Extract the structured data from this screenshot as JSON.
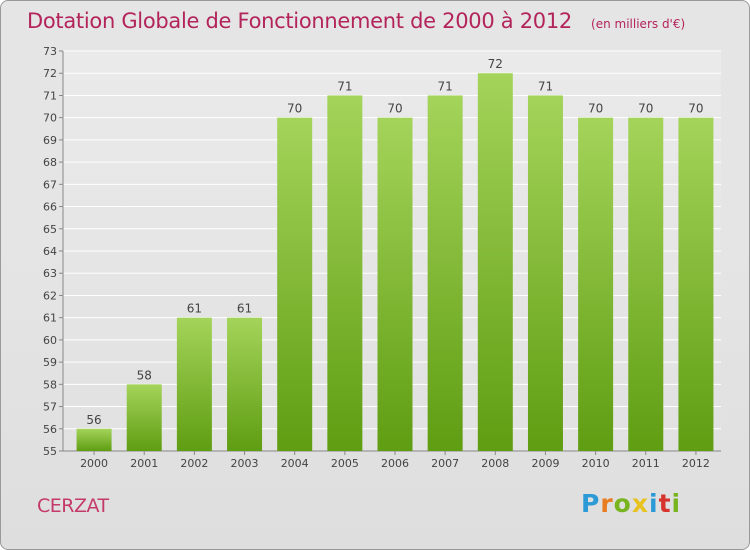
{
  "header": {
    "title": "Dotation Globale de Fonctionnement de 2000 à 2012",
    "unit": "(en milliers d'€)"
  },
  "footer": {
    "commune": "CERZAT",
    "logo": {
      "letters": [
        "P",
        "r",
        "o",
        "x",
        "i",
        "t",
        "i"
      ],
      "colors": [
        "#2b9ad6",
        "#e87c1e",
        "#78b41e",
        "#e8c21e",
        "#2b9ad6",
        "#d8342e",
        "#78b41e"
      ]
    }
  },
  "colors": {
    "title": "#b3245b",
    "bar_light": "#a4d45a",
    "bar_dark": "#5f9d12",
    "gridline": "#ffffff",
    "axis_text": "#444444"
  },
  "chart_data": {
    "type": "bar",
    "title": "Dotation Globale de Fonctionnement de 2000 à 2012",
    "xlabel": "",
    "ylabel": "",
    "categories": [
      "2000",
      "2001",
      "2002",
      "2003",
      "2004",
      "2005",
      "2006",
      "2007",
      "2008",
      "2009",
      "2010",
      "2011",
      "2012"
    ],
    "values": [
      56,
      58,
      61,
      61,
      70,
      71,
      70,
      71,
      72,
      71,
      70,
      70,
      70
    ],
    "ylim": [
      55,
      73
    ],
    "yticks": [
      55,
      56,
      57,
      58,
      59,
      60,
      61,
      62,
      63,
      64,
      65,
      66,
      67,
      68,
      69,
      70,
      71,
      72,
      73
    ],
    "grid": true,
    "legend": "none",
    "data_labels": true
  }
}
